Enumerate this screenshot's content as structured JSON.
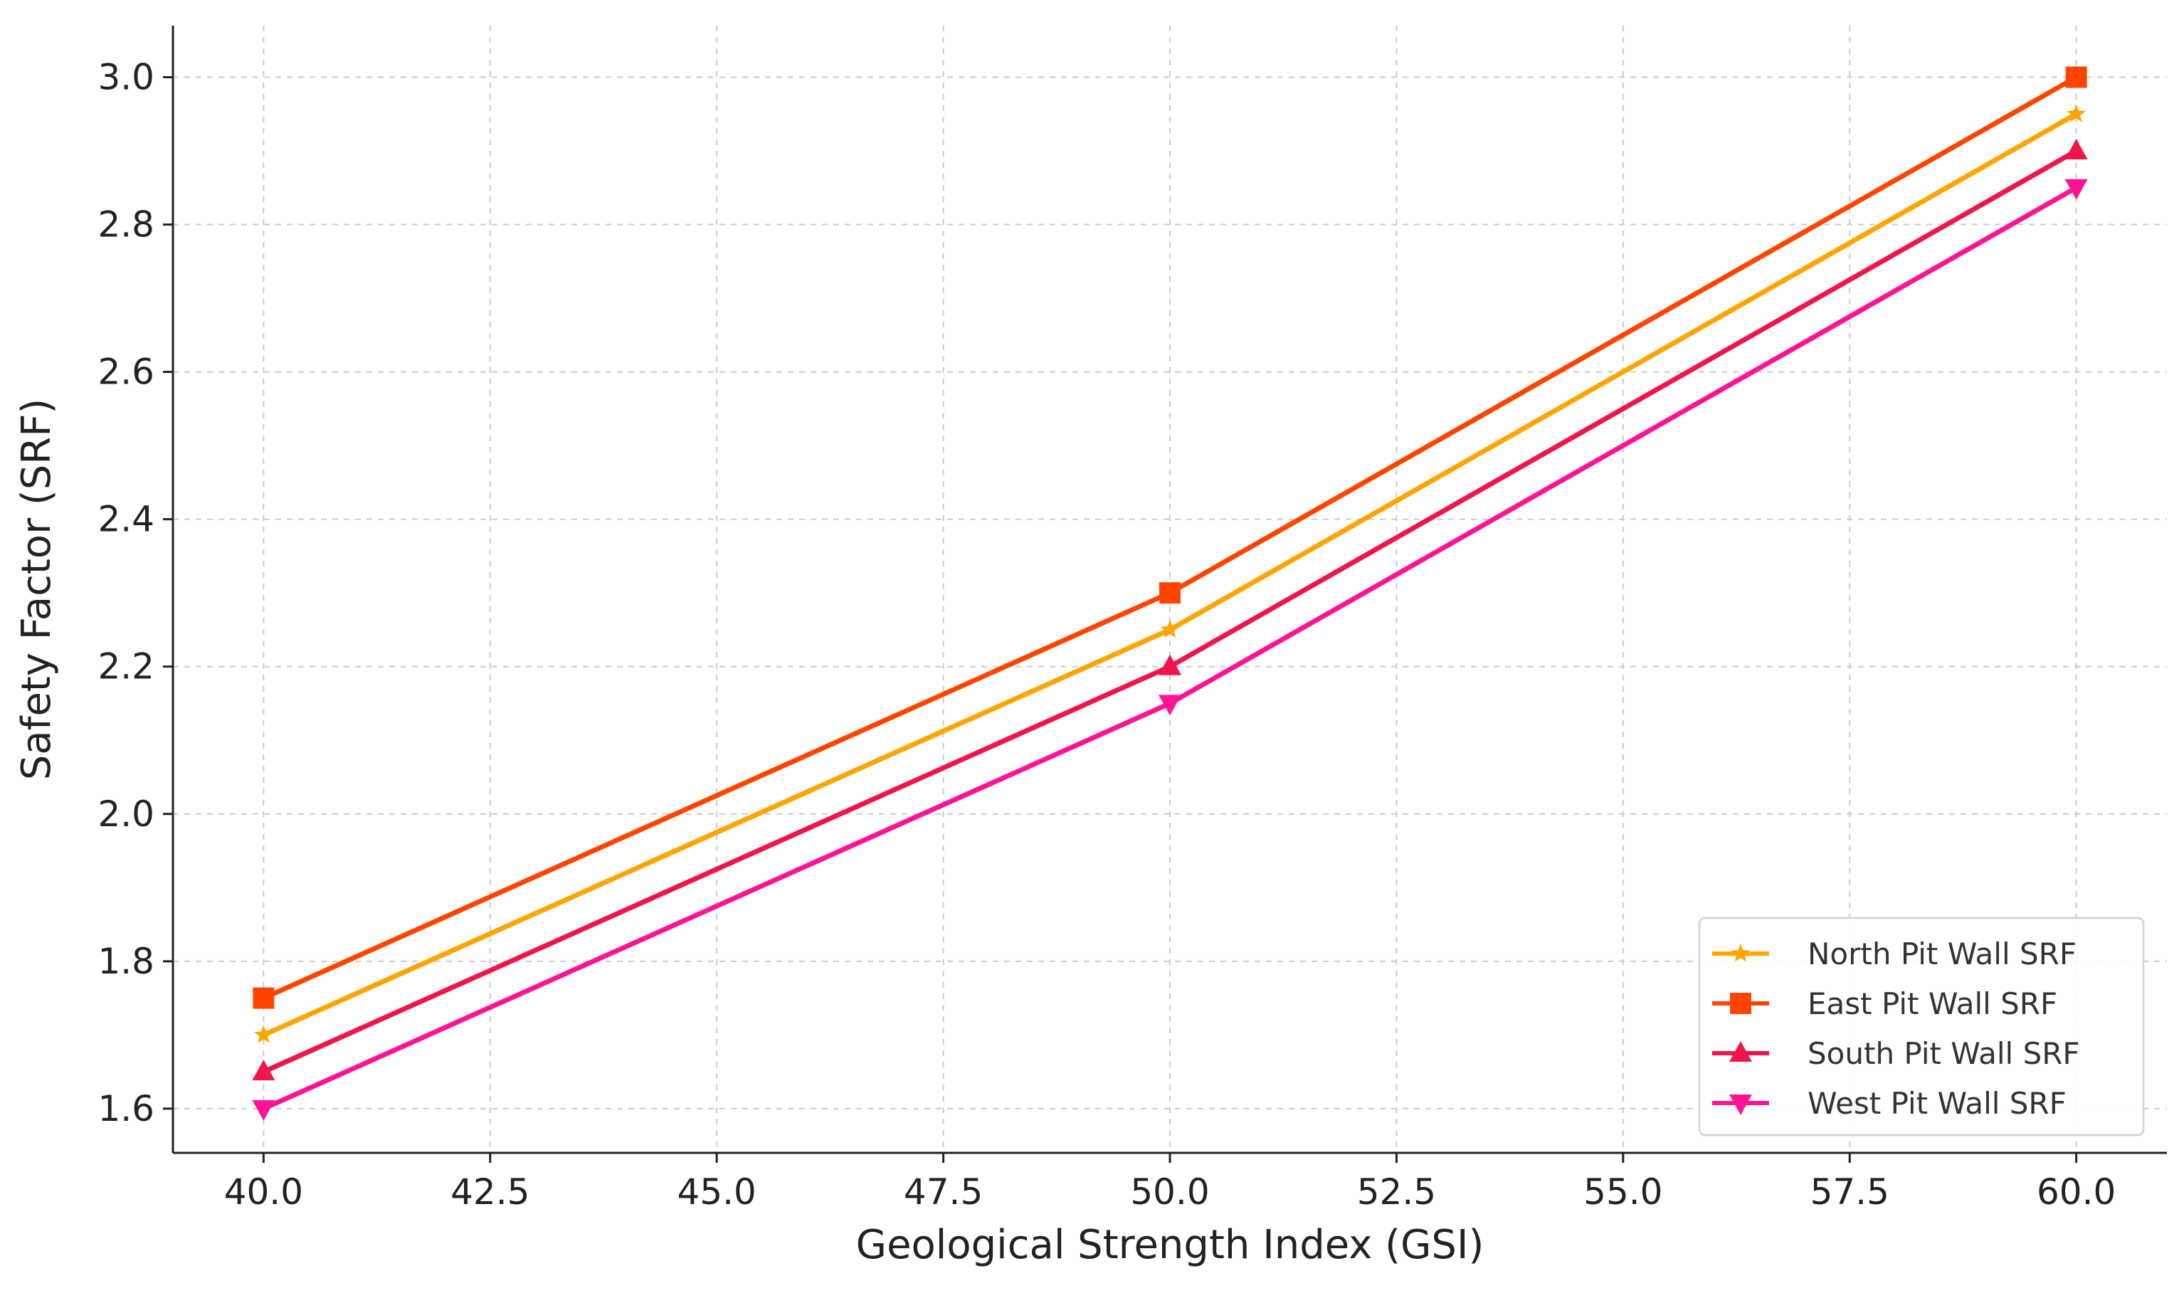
{
  "chart_data": {
    "type": "line",
    "title": "",
    "xlabel": "Geological Strength Index (GSI)",
    "ylabel": "Safety Factor (SRF)",
    "xlim": [
      39.0,
      61.0
    ],
    "ylim": [
      1.54,
      3.07
    ],
    "xticks": [
      40.0,
      42.5,
      45.0,
      47.5,
      50.0,
      52.5,
      55.0,
      57.5,
      60.0
    ],
    "xtick_labels": [
      "40.0",
      "42.5",
      "45.0",
      "47.5",
      "50.0",
      "52.5",
      "55.0",
      "57.5",
      "60.0"
    ],
    "yticks": [
      1.6,
      1.8,
      2.0,
      2.2,
      2.4,
      2.6,
      2.8,
      3.0
    ],
    "ytick_labels": [
      "1.6",
      "1.8",
      "2.0",
      "2.2",
      "2.4",
      "2.6",
      "2.8",
      "3.0"
    ],
    "grid": true,
    "legend_position": "bottom-right",
    "x": [
      40,
      50,
      60
    ],
    "series": [
      {
        "name": "North Pit Wall SRF",
        "values": [
          1.7,
          2.25,
          2.95
        ],
        "color": "#FFA500",
        "marker": "star"
      },
      {
        "name": "East Pit Wall SRF",
        "values": [
          1.75,
          2.3,
          3.0
        ],
        "color": "#FF4500",
        "marker": "square"
      },
      {
        "name": "South Pit Wall SRF",
        "values": [
          1.65,
          2.2,
          2.9
        ],
        "color": "#F0154A",
        "marker": "triangle-up"
      },
      {
        "name": "West Pit Wall SRF",
        "values": [
          1.6,
          2.15,
          2.85
        ],
        "color": "#FF1493",
        "marker": "triangle-down"
      }
    ]
  }
}
